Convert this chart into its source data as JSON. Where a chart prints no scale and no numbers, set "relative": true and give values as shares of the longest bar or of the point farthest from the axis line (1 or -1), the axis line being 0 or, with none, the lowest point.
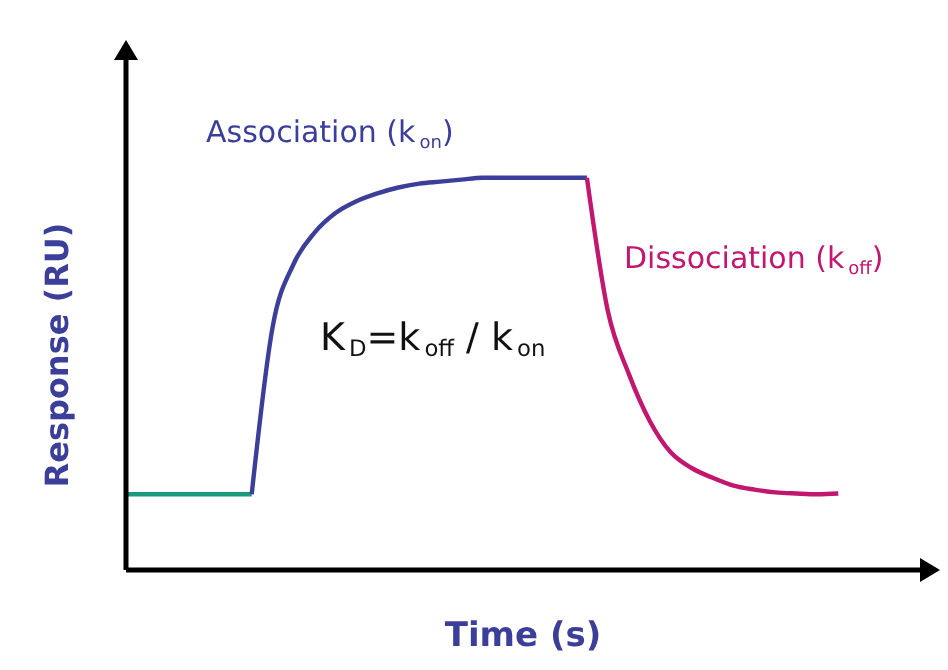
{
  "chart_data": {
    "type": "line",
    "relative": true,
    "xlabel": "Time (s)",
    "ylabel": "Response (RU)",
    "categories": [
      null,
      null,
      null,
      null,
      null,
      null,
      null,
      null,
      null,
      null,
      null,
      null,
      null,
      null,
      null,
      null,
      null,
      null,
      null,
      null,
      null,
      null,
      null,
      null,
      null,
      null,
      null,
      null,
      null,
      null,
      null,
      null,
      null,
      null,
      null
    ],
    "series": [
      {
        "color": "#1a9a7a",
        "values": [
          0.193,
          0.193,
          0.193,
          0.193,
          0.193,
          0.193,
          0.193,
          null,
          null,
          null,
          null,
          null,
          null,
          null,
          null,
          null,
          null,
          null,
          null,
          null,
          null,
          null,
          null,
          null,
          null,
          null,
          null,
          null,
          null,
          null,
          null,
          null,
          null,
          null,
          null
        ]
      },
      {
        "color": "#3b3f99",
        "values": [
          null,
          null,
          null,
          null,
          null,
          null,
          0.193,
          0.62,
          0.78,
          0.86,
          0.91,
          0.94,
          0.96,
          0.975,
          0.985,
          0.99,
          0.995,
          1,
          1,
          1,
          1,
          1,
          1,
          null,
          null,
          null,
          null,
          null,
          null,
          null,
          null,
          null,
          null,
          null,
          null
        ]
      },
      {
        "color": "#c2176f",
        "values": [
          null,
          null,
          null,
          null,
          null,
          null,
          null,
          null,
          null,
          null,
          null,
          null,
          null,
          null,
          null,
          null,
          null,
          null,
          null,
          null,
          null,
          null,
          1,
          0.66,
          0.5,
          0.38,
          0.3,
          0.26,
          0.235,
          0.215,
          0.205,
          0.198,
          0.195,
          0.193,
          0.195
        ]
      }
    ],
    "annotations": [
      "Association (k$_{on}$)",
      "Dissociation (k$_{off}$)",
      "K$_{D}$=k$_{off}$ / k$_{on}$"
    ]
  }
}
